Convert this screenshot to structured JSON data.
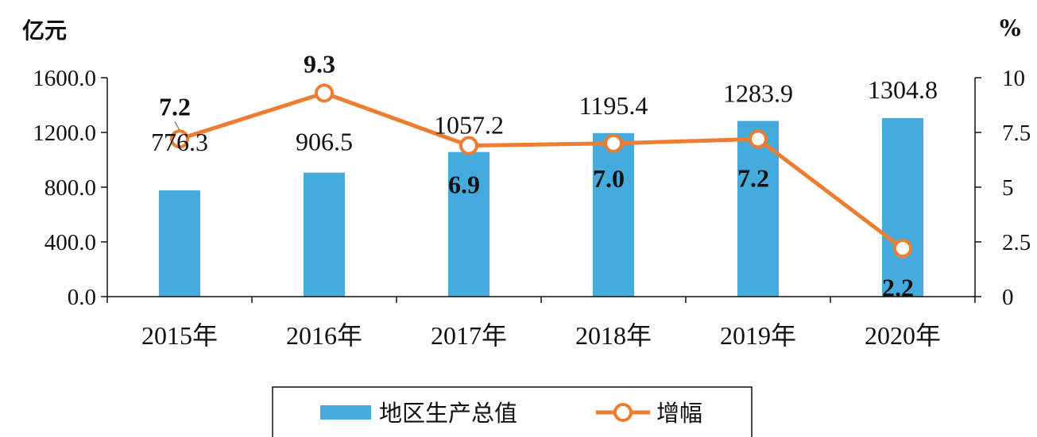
{
  "chart_data": {
    "type": "bar",
    "title": "",
    "categories": [
      "2015年",
      "2016年",
      "2017年",
      "2018年",
      "2019年",
      "2020年"
    ],
    "series": [
      {
        "name": "地区生产总值",
        "type": "bar",
        "axis": "left",
        "color": "#44abdc",
        "values": [
          776.3,
          906.5,
          1057.2,
          1195.4,
          1283.9,
          1304.8
        ],
        "labels": [
          "776.3",
          "906.5",
          "1057.2",
          "1195.4",
          "1283.9",
          "1304.8"
        ]
      },
      {
        "name": "增幅",
        "type": "line",
        "axis": "right",
        "color": "#ee7d31",
        "marker_fill": "#ffffff",
        "values": [
          7.2,
          9.3,
          6.9,
          7.0,
          7.2,
          2.2
        ],
        "labels": [
          "7.2",
          "9.3",
          "6.9",
          "7.0",
          "7.2",
          "2.2"
        ]
      }
    ],
    "y_left": {
      "unit": "亿元",
      "range": [
        0,
        1600
      ],
      "ticks": [
        0,
        400,
        800,
        1200,
        1600
      ],
      "tick_labels": [
        "0.0",
        "400.0",
        "800.0",
        "1200.0",
        "1600.0"
      ]
    },
    "y_right": {
      "unit": "%",
      "range": [
        0,
        10
      ],
      "ticks": [
        0,
        2.5,
        5,
        7.5,
        10
      ],
      "tick_labels": [
        "0",
        "2.5",
        "5",
        "7.5",
        "10"
      ]
    },
    "grid": false,
    "legend": "bottom"
  }
}
